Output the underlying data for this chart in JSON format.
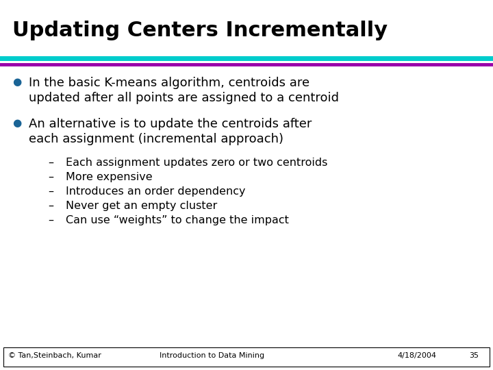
{
  "title": "Updating Centers Incrementally",
  "title_fontsize": 22,
  "title_color": "#000000",
  "bg_color": "#ffffff",
  "line1_color": "#00CCCC",
  "line2_color": "#9900AA",
  "bullet_color": "#1A6496",
  "bullet1_text_line1": "In the basic K-means algorithm, centroids are",
  "bullet1_text_line2": "updated after all points are assigned to a centroid",
  "bullet2_text_line1": "An alternative is to update the centroids after",
  "bullet2_text_line2": "each assignment (incremental approach)",
  "sub_bullets": [
    "Each assignment updates zero or two centroids",
    "More expensive",
    "Introduces an order dependency",
    "Never get an empty cluster",
    "Can use “weights” to change the impact"
  ],
  "footer_left": "© Tan,Steinbach, Kumar",
  "footer_center": "Introduction to Data Mining",
  "footer_right": "4/18/2004",
  "footer_page": "35",
  "footer_fontsize": 8,
  "main_fontsize": 13,
  "sub_fontsize": 11.5
}
